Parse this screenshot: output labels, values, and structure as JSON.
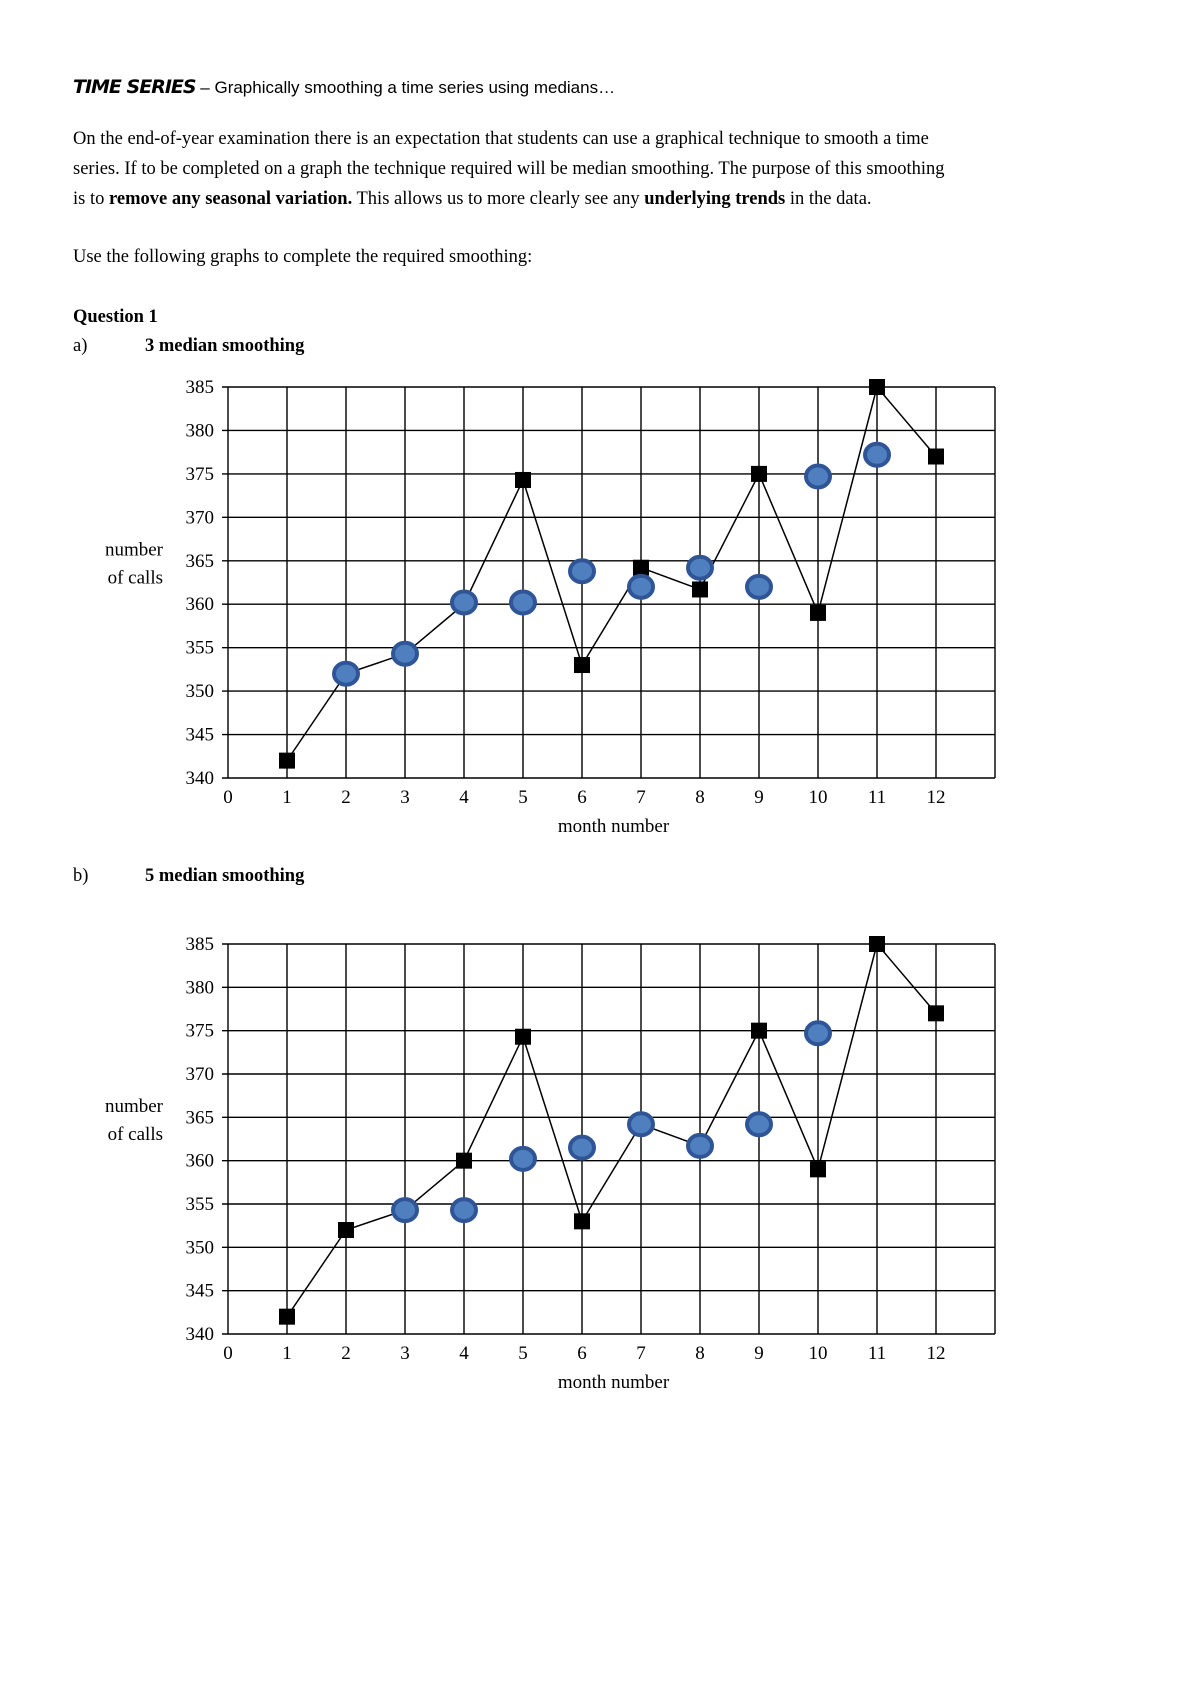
{
  "header": {
    "title": "TIME SERIES",
    "dash": " – ",
    "subtitle": "Graphically smoothing a time series using medians…"
  },
  "intro": {
    "line1": "On the end-of-year examination there is an expectation that students can use a graphical technique to smooth a time",
    "line2": "series. If to be completed on a graph the technique required will be median smoothing. The purpose of this smoothing",
    "line3_a": "is to ",
    "line3_b": "remove any seasonal variation.",
    "line3_c": " This allows us to more clearly see any ",
    "line3_d": "underlying trends",
    "line3_e": " in the data.",
    "instruction": "Use the following graphs to complete the required smoothing:"
  },
  "question": {
    "label": "Question 1",
    "part_a_letter": "a)",
    "part_a_title": "3 median smoothing",
    "part_b_letter": "b)",
    "part_b_title": "5 median smoothing"
  },
  "chart_data": [
    {
      "type": "line",
      "title": "3 median smoothing",
      "xlabel": "month number",
      "ylabel": [
        "number",
        "of calls"
      ],
      "xlim": [
        0,
        13
      ],
      "ylim": [
        340,
        385
      ],
      "xticks": [
        0,
        1,
        2,
        3,
        4,
        5,
        6,
        7,
        8,
        9,
        10,
        11,
        12
      ],
      "yticks": [
        340,
        345,
        350,
        355,
        360,
        365,
        370,
        375,
        380,
        385
      ],
      "grid": true,
      "series": [
        {
          "marker": "square",
          "color": "#000000",
          "line": true,
          "x": [
            1,
            2,
            3,
            4,
            5,
            6,
            7,
            8,
            9,
            10,
            11,
            12
          ],
          "y": [
            342,
            352,
            354.3,
            360,
            374.3,
            353,
            364.2,
            361.7,
            375,
            359,
            385,
            377
          ]
        },
        {
          "marker": "circle",
          "color": "#4f7fbf",
          "edge": "#2f5597",
          "line": false,
          "x": [
            2,
            3,
            4,
            5,
            6,
            7,
            8,
            9,
            10,
            11
          ],
          "y": [
            352,
            354.3,
            360.2,
            360.2,
            363.8,
            362,
            364.2,
            362,
            374.7,
            377.2
          ]
        }
      ]
    },
    {
      "type": "line",
      "title": "5 median smoothing",
      "xlabel": "month number",
      "ylabel": [
        "number",
        "of calls"
      ],
      "xlim": [
        0,
        13
      ],
      "ylim": [
        340,
        385
      ],
      "xticks": [
        0,
        1,
        2,
        3,
        4,
        5,
        6,
        7,
        8,
        9,
        10,
        11,
        12
      ],
      "yticks": [
        340,
        345,
        350,
        355,
        360,
        365,
        370,
        375,
        380,
        385
      ],
      "grid": true,
      "series": [
        {
          "marker": "square",
          "color": "#000000",
          "line": true,
          "x": [
            1,
            2,
            3,
            4,
            5,
            6,
            7,
            8,
            9,
            10,
            11,
            12
          ],
          "y": [
            342,
            352,
            354.3,
            360,
            374.3,
            353,
            364.2,
            361.7,
            375,
            359,
            385,
            377
          ]
        },
        {
          "marker": "circle",
          "color": "#4f7fbf",
          "edge": "#2f5597",
          "line": false,
          "x": [
            3,
            4,
            5,
            6,
            7,
            8,
            9,
            10
          ],
          "y": [
            354.3,
            354.3,
            360.2,
            361.5,
            364.2,
            361.7,
            364.2,
            374.7
          ]
        }
      ]
    }
  ]
}
